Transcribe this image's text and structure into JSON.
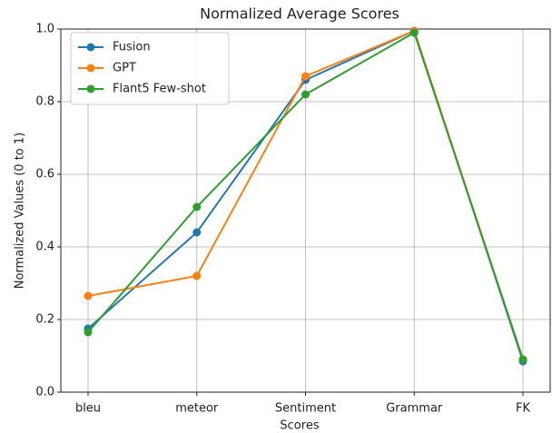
{
  "chart_data": {
    "type": "line",
    "title": "Normalized Average Scores",
    "x_label": "Scores",
    "y_label": "Normalized Values (0 to 1)",
    "categories": [
      "bleu",
      "meteor",
      "Sentiment",
      "Grammar",
      "FK"
    ],
    "series": [
      {
        "name": "Fusion",
        "color": "#1f77b4",
        "values": [
          0.175,
          0.44,
          0.86,
          0.995,
          0.085
        ]
      },
      {
        "name": "GPT",
        "color": "#ff7f0e",
        "values": [
          0.265,
          0.32,
          0.87,
          0.995,
          0.09
        ]
      },
      {
        "name": "Flant5 Few-shot",
        "color": "#2ca02c",
        "values": [
          0.165,
          0.51,
          0.82,
          0.99,
          0.09
        ]
      }
    ],
    "ylim": [
      0,
      1
    ],
    "yticks": [
      {
        "value": 0,
        "label": "0.0"
      },
      0.2,
      0.4,
      0.6,
      0.8,
      {
        "value": 1,
        "label": "1.0"
      }
    ],
    "grid": true,
    "legend": "upper left"
  }
}
